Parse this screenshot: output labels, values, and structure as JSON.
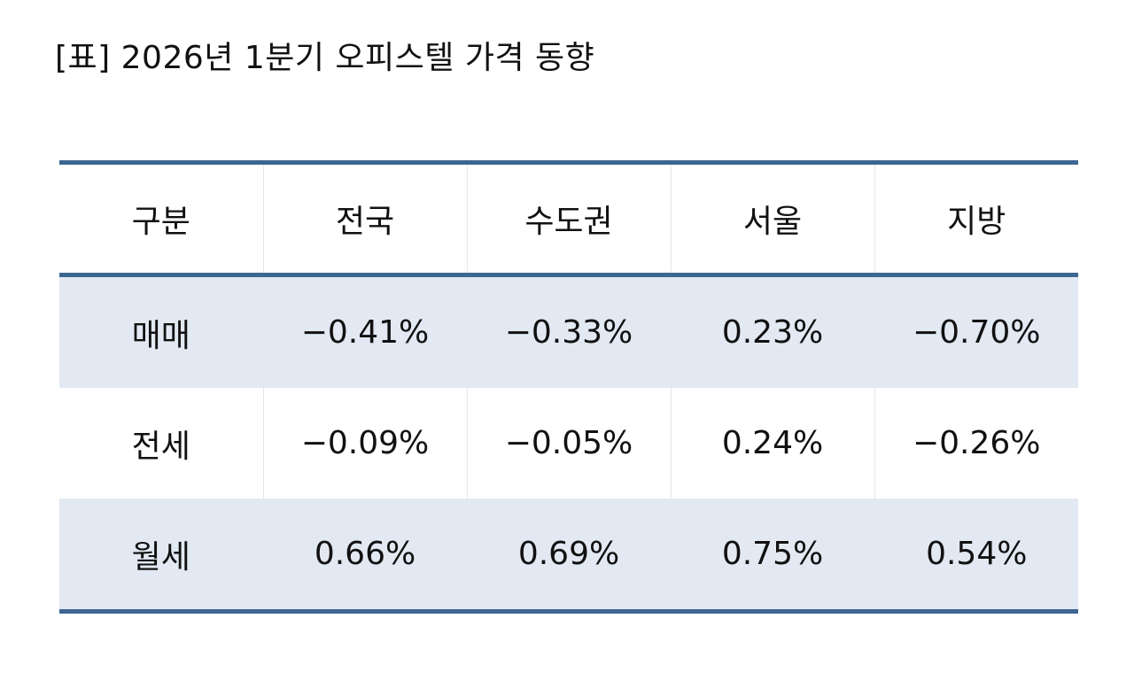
{
  "title": "[표] 2026년 1분기 오피스텔 가격 동향",
  "table": {
    "headers": [
      "구분",
      "전국",
      "수도권",
      "서울",
      "지방"
    ],
    "rows": [
      [
        "매매",
        "−0.41%",
        "−0.33%",
        "0.23%",
        "−0.70%"
      ],
      [
        "전세",
        "−0.09%",
        "−0.05%",
        "0.24%",
        "−0.26%"
      ],
      [
        "월세",
        "0.66%",
        "0.69%",
        "0.75%",
        "0.54%"
      ]
    ]
  },
  "colors": {
    "rule": "#3d6691",
    "shaded_row": "#e2e9f3",
    "divider": "#e3e7ee"
  }
}
